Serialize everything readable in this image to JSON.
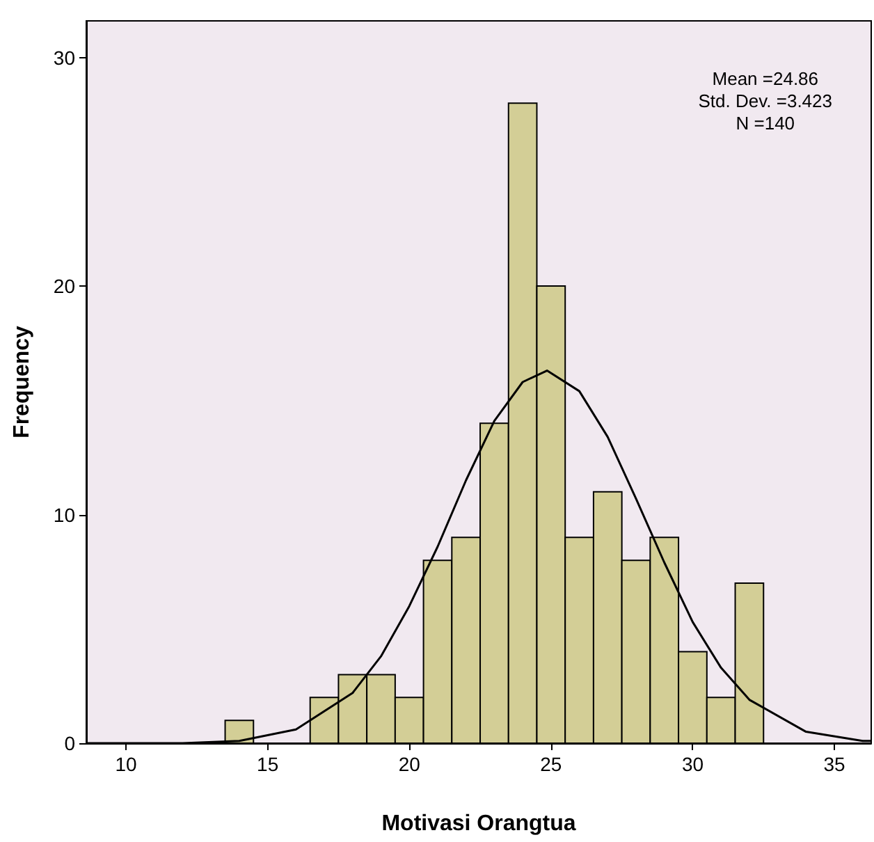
{
  "chart_data": {
    "type": "histogram",
    "xlabel": "Motivasi Orangtua",
    "ylabel": "Frequency",
    "annotations": [
      "Mean =24.86",
      "Std. Dev. =3.423",
      "N =140"
    ],
    "bins": [
      13.5,
      14.5,
      15.5,
      16.5,
      17.5,
      18.5,
      19.5,
      20.5,
      21.5,
      22.5,
      23.5,
      24.5,
      25.5,
      26.5,
      27.5,
      28.5,
      29.5,
      30.5,
      31.5,
      32.5
    ],
    "values": [
      1,
      0,
      0,
      2,
      3,
      3,
      2,
      8,
      9,
      14,
      28,
      20,
      9,
      11,
      8,
      9,
      4,
      2,
      7
    ],
    "color": "#d3ce96",
    "series": [
      {
        "type": "line",
        "color": "#000000",
        "x": [
          8.6,
          10,
          12,
          14,
          16,
          18,
          19,
          20,
          21,
          22,
          23,
          24,
          24.86,
          26,
          27,
          28,
          29,
          30,
          31,
          32,
          34,
          36,
          36.3
        ],
        "values": [
          0,
          0,
          0,
          0.1,
          0.6,
          2.2,
          3.8,
          6,
          8.6,
          11.5,
          14.1,
          15.8,
          16.3,
          15.4,
          13.4,
          10.7,
          7.9,
          5.3,
          3.3,
          1.9,
          0.5,
          0.1,
          0.1
        ]
      }
    ],
    "xlim": [
      8.6,
      36.3
    ],
    "xticks": [
      10,
      15,
      20,
      25,
      30,
      35
    ],
    "ylim": [
      0,
      31.6
    ],
    "yticks": [
      0,
      10,
      20,
      30
    ],
    "grid": false,
    "marker": "none",
    "line_style": "solid"
  }
}
